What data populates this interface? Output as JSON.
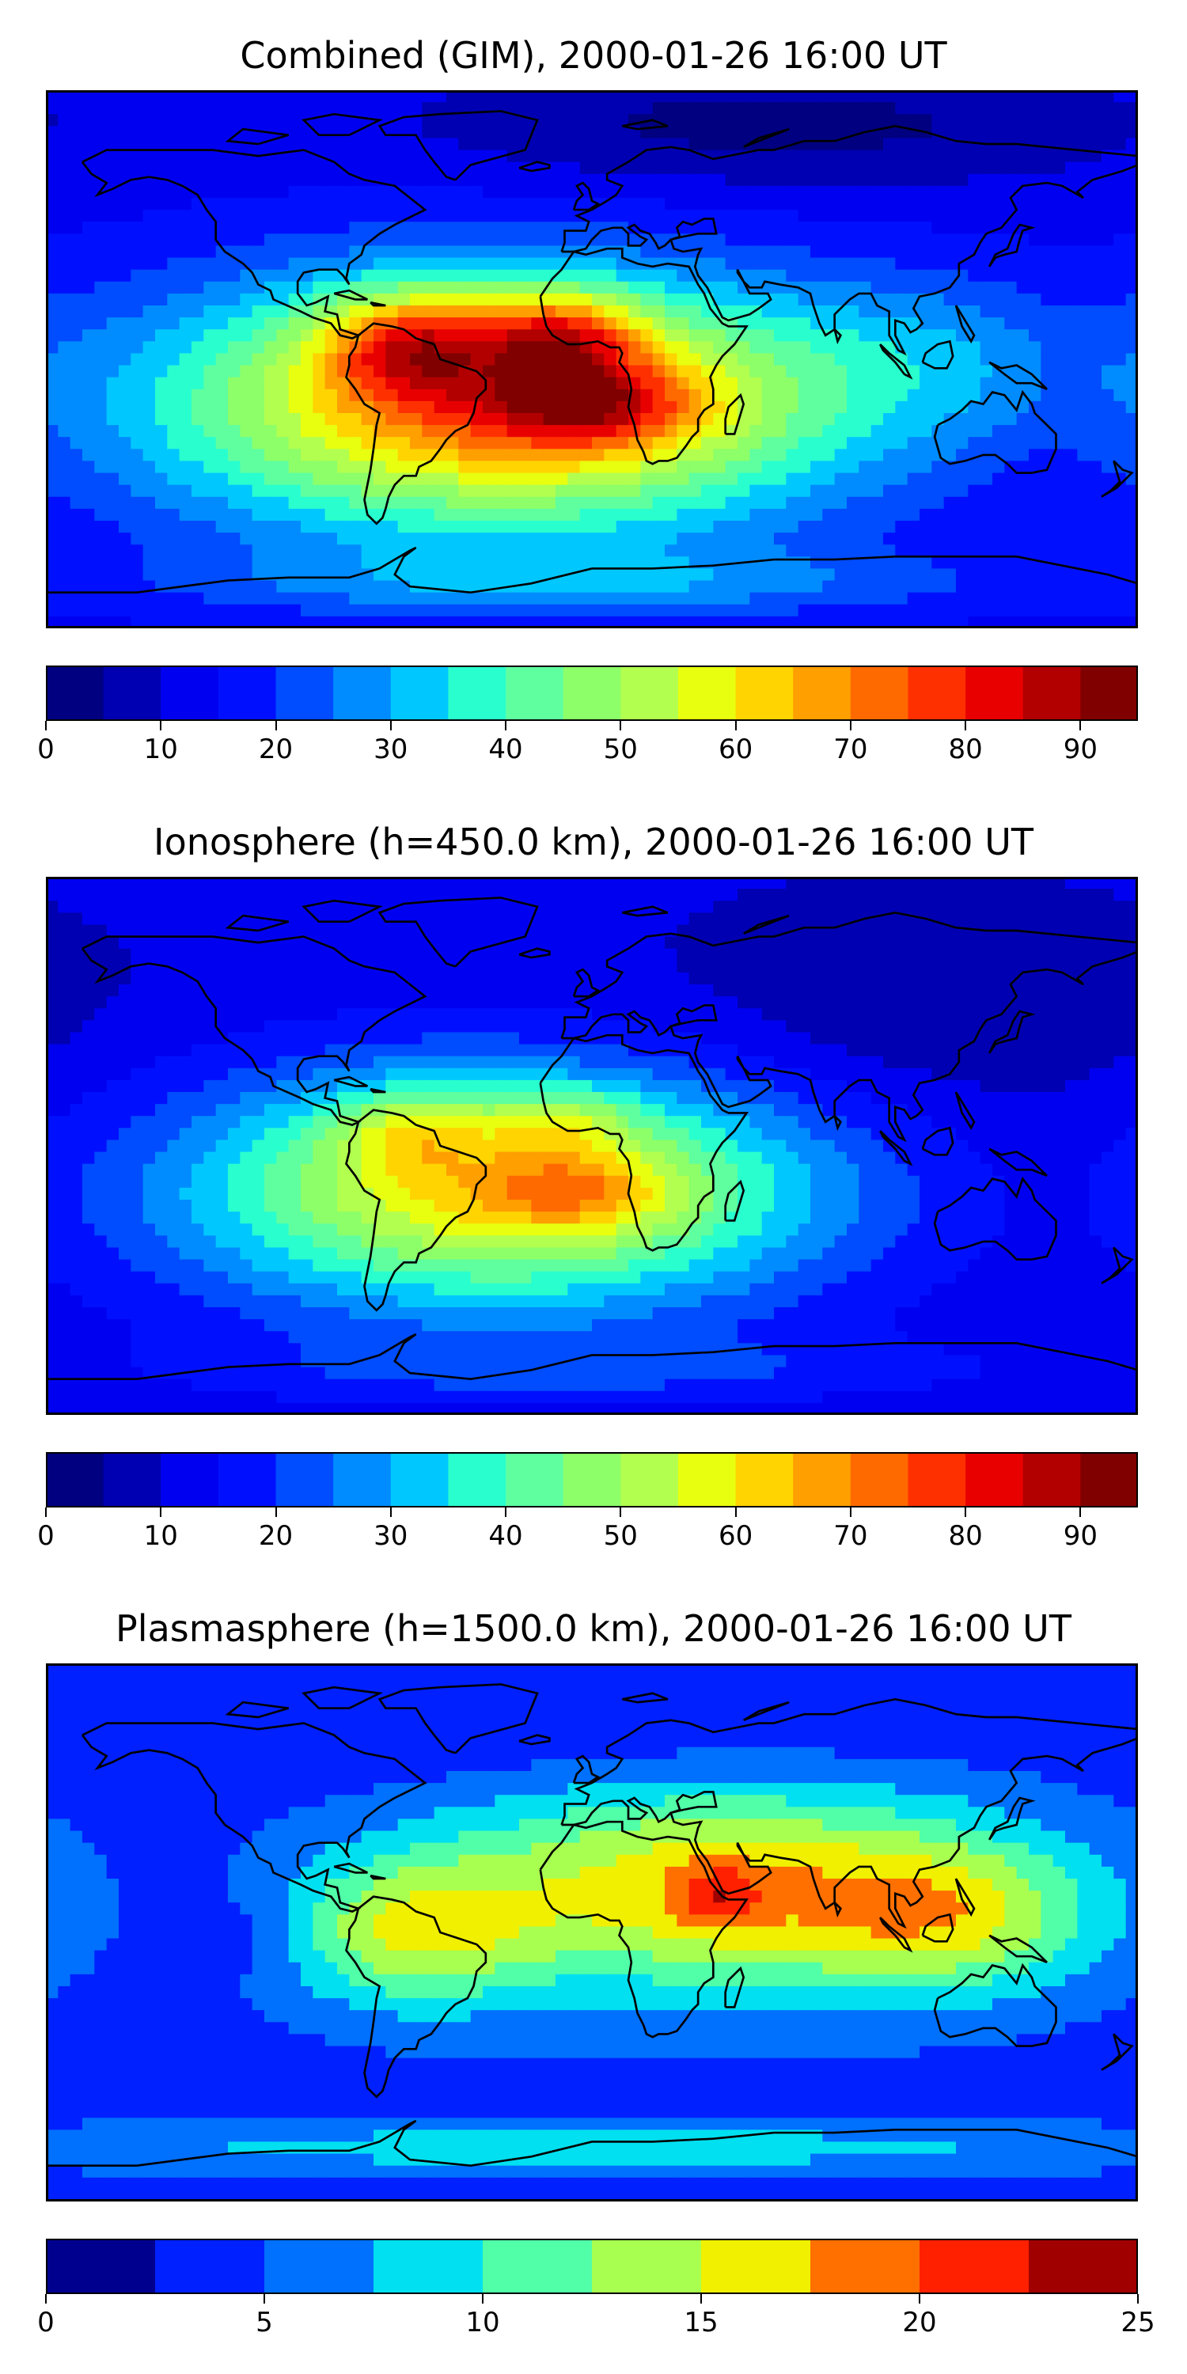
{
  "colors": {
    "jet20": [
      "#000080",
      "#0000b2",
      "#0000f1",
      "#0010ff",
      "#004cff",
      "#008cff",
      "#00c8ff",
      "#29ffce",
      "#5fffa0",
      "#8cff69",
      "#b2ff4f",
      "#e8ff0f",
      "#ffd400",
      "#ff9f00",
      "#ff6a00",
      "#ff3000",
      "#e80000",
      "#b20000",
      "#800000"
    ],
    "jet10": [
      "#00008f",
      "#0020ff",
      "#0070ff",
      "#00e0f0",
      "#50ffa8",
      "#a8ff50",
      "#f0f000",
      "#ff7000",
      "#ff2000",
      "#a00000"
    ]
  },
  "panels": [
    {
      "title": "Combined (GIM), 2000-01-26 16:00 UT",
      "palette": "jet20",
      "colorbar": {
        "min": 0,
        "max": 95,
        "step": 5
      },
      "ticks": [
        "0",
        "10",
        "20",
        "30",
        "40",
        "50",
        "60",
        "70",
        "80",
        "90"
      ],
      "tick_values": [
        0,
        10,
        20,
        30,
        40,
        50,
        60,
        70,
        80,
        90
      ],
      "field": {
        "background": 13,
        "blobs": [
          {
            "lon": -30,
            "lat": -15,
            "value": 60,
            "sx": 80,
            "sy": 30
          },
          {
            "lon": -60,
            "lat": 5,
            "value": 30,
            "sx": 20,
            "sy": 12
          },
          {
            "lon": -10,
            "lat": 8,
            "value": 30,
            "sx": 18,
            "sy": 10
          },
          {
            "lon": 0,
            "lat": -15,
            "value": 25,
            "sx": 25,
            "sy": 10
          },
          {
            "lon": 120,
            "lat": 0,
            "value": 10,
            "sx": 40,
            "sy": 20
          },
          {
            "lon": 0,
            "lat": -75,
            "value": 12,
            "sx": 100,
            "sy": 8
          },
          {
            "lon": 60,
            "lat": 78,
            "value": -10,
            "sx": 80,
            "sy": 15
          }
        ]
      }
    },
    {
      "title": "Ionosphere  (h=450.0 km), 2000-01-26 16:00 UT",
      "palette": "jet20",
      "colorbar": {
        "min": 0,
        "max": 95,
        "step": 5
      },
      "ticks": [
        "0",
        "10",
        "20",
        "30",
        "40",
        "50",
        "60",
        "70",
        "80",
        "90"
      ],
      "tick_values": [
        0,
        10,
        20,
        30,
        40,
        50,
        60,
        70,
        80,
        90
      ],
      "field": {
        "background": 11,
        "blobs": [
          {
            "lon": -30,
            "lat": -15,
            "value": 50,
            "sx": 75,
            "sy": 28
          },
          {
            "lon": -60,
            "lat": 5,
            "value": 15,
            "sx": 18,
            "sy": 10
          },
          {
            "lon": -10,
            "lat": 8,
            "value": 12,
            "sx": 16,
            "sy": 8
          },
          {
            "lon": -5,
            "lat": -15,
            "value": 15,
            "sx": 22,
            "sy": 9
          },
          {
            "lon": 110,
            "lat": 45,
            "value": -6,
            "sx": 60,
            "sy": 25
          },
          {
            "lon": 0,
            "lat": -75,
            "value": 8,
            "sx": 100,
            "sy": 8
          }
        ]
      }
    },
    {
      "title": "Plasmasphere (h=1500.0 km), 2000-01-26 16:00 UT",
      "palette": "jet10",
      "colorbar": {
        "min": 0,
        "max": 25,
        "step": 2.5
      },
      "ticks": [
        "0",
        "5",
        "10",
        "15",
        "20",
        "25"
      ],
      "tick_values": [
        0,
        5,
        10,
        15,
        20,
        25
      ],
      "field": {
        "background": 4,
        "blobs": [
          {
            "lon": 40,
            "lat": 15,
            "value": 13,
            "sx": 65,
            "sy": 25
          },
          {
            "lon": 42,
            "lat": 12,
            "value": 5,
            "sx": 10,
            "sy": 8
          },
          {
            "lon": -60,
            "lat": 0,
            "value": 9,
            "sx": 30,
            "sy": 18
          },
          {
            "lon": 120,
            "lat": 5,
            "value": 8,
            "sx": 35,
            "sy": 18
          },
          {
            "lon": -110,
            "lat": 0,
            "value": -2,
            "sx": 12,
            "sy": 10
          },
          {
            "lon": 0,
            "lat": -72,
            "value": 5,
            "sx": 140,
            "sy": 6
          },
          {
            "lon": 0,
            "lat": 70,
            "value": -2,
            "sx": 100,
            "sy": 15
          }
        ]
      }
    }
  ]
}
